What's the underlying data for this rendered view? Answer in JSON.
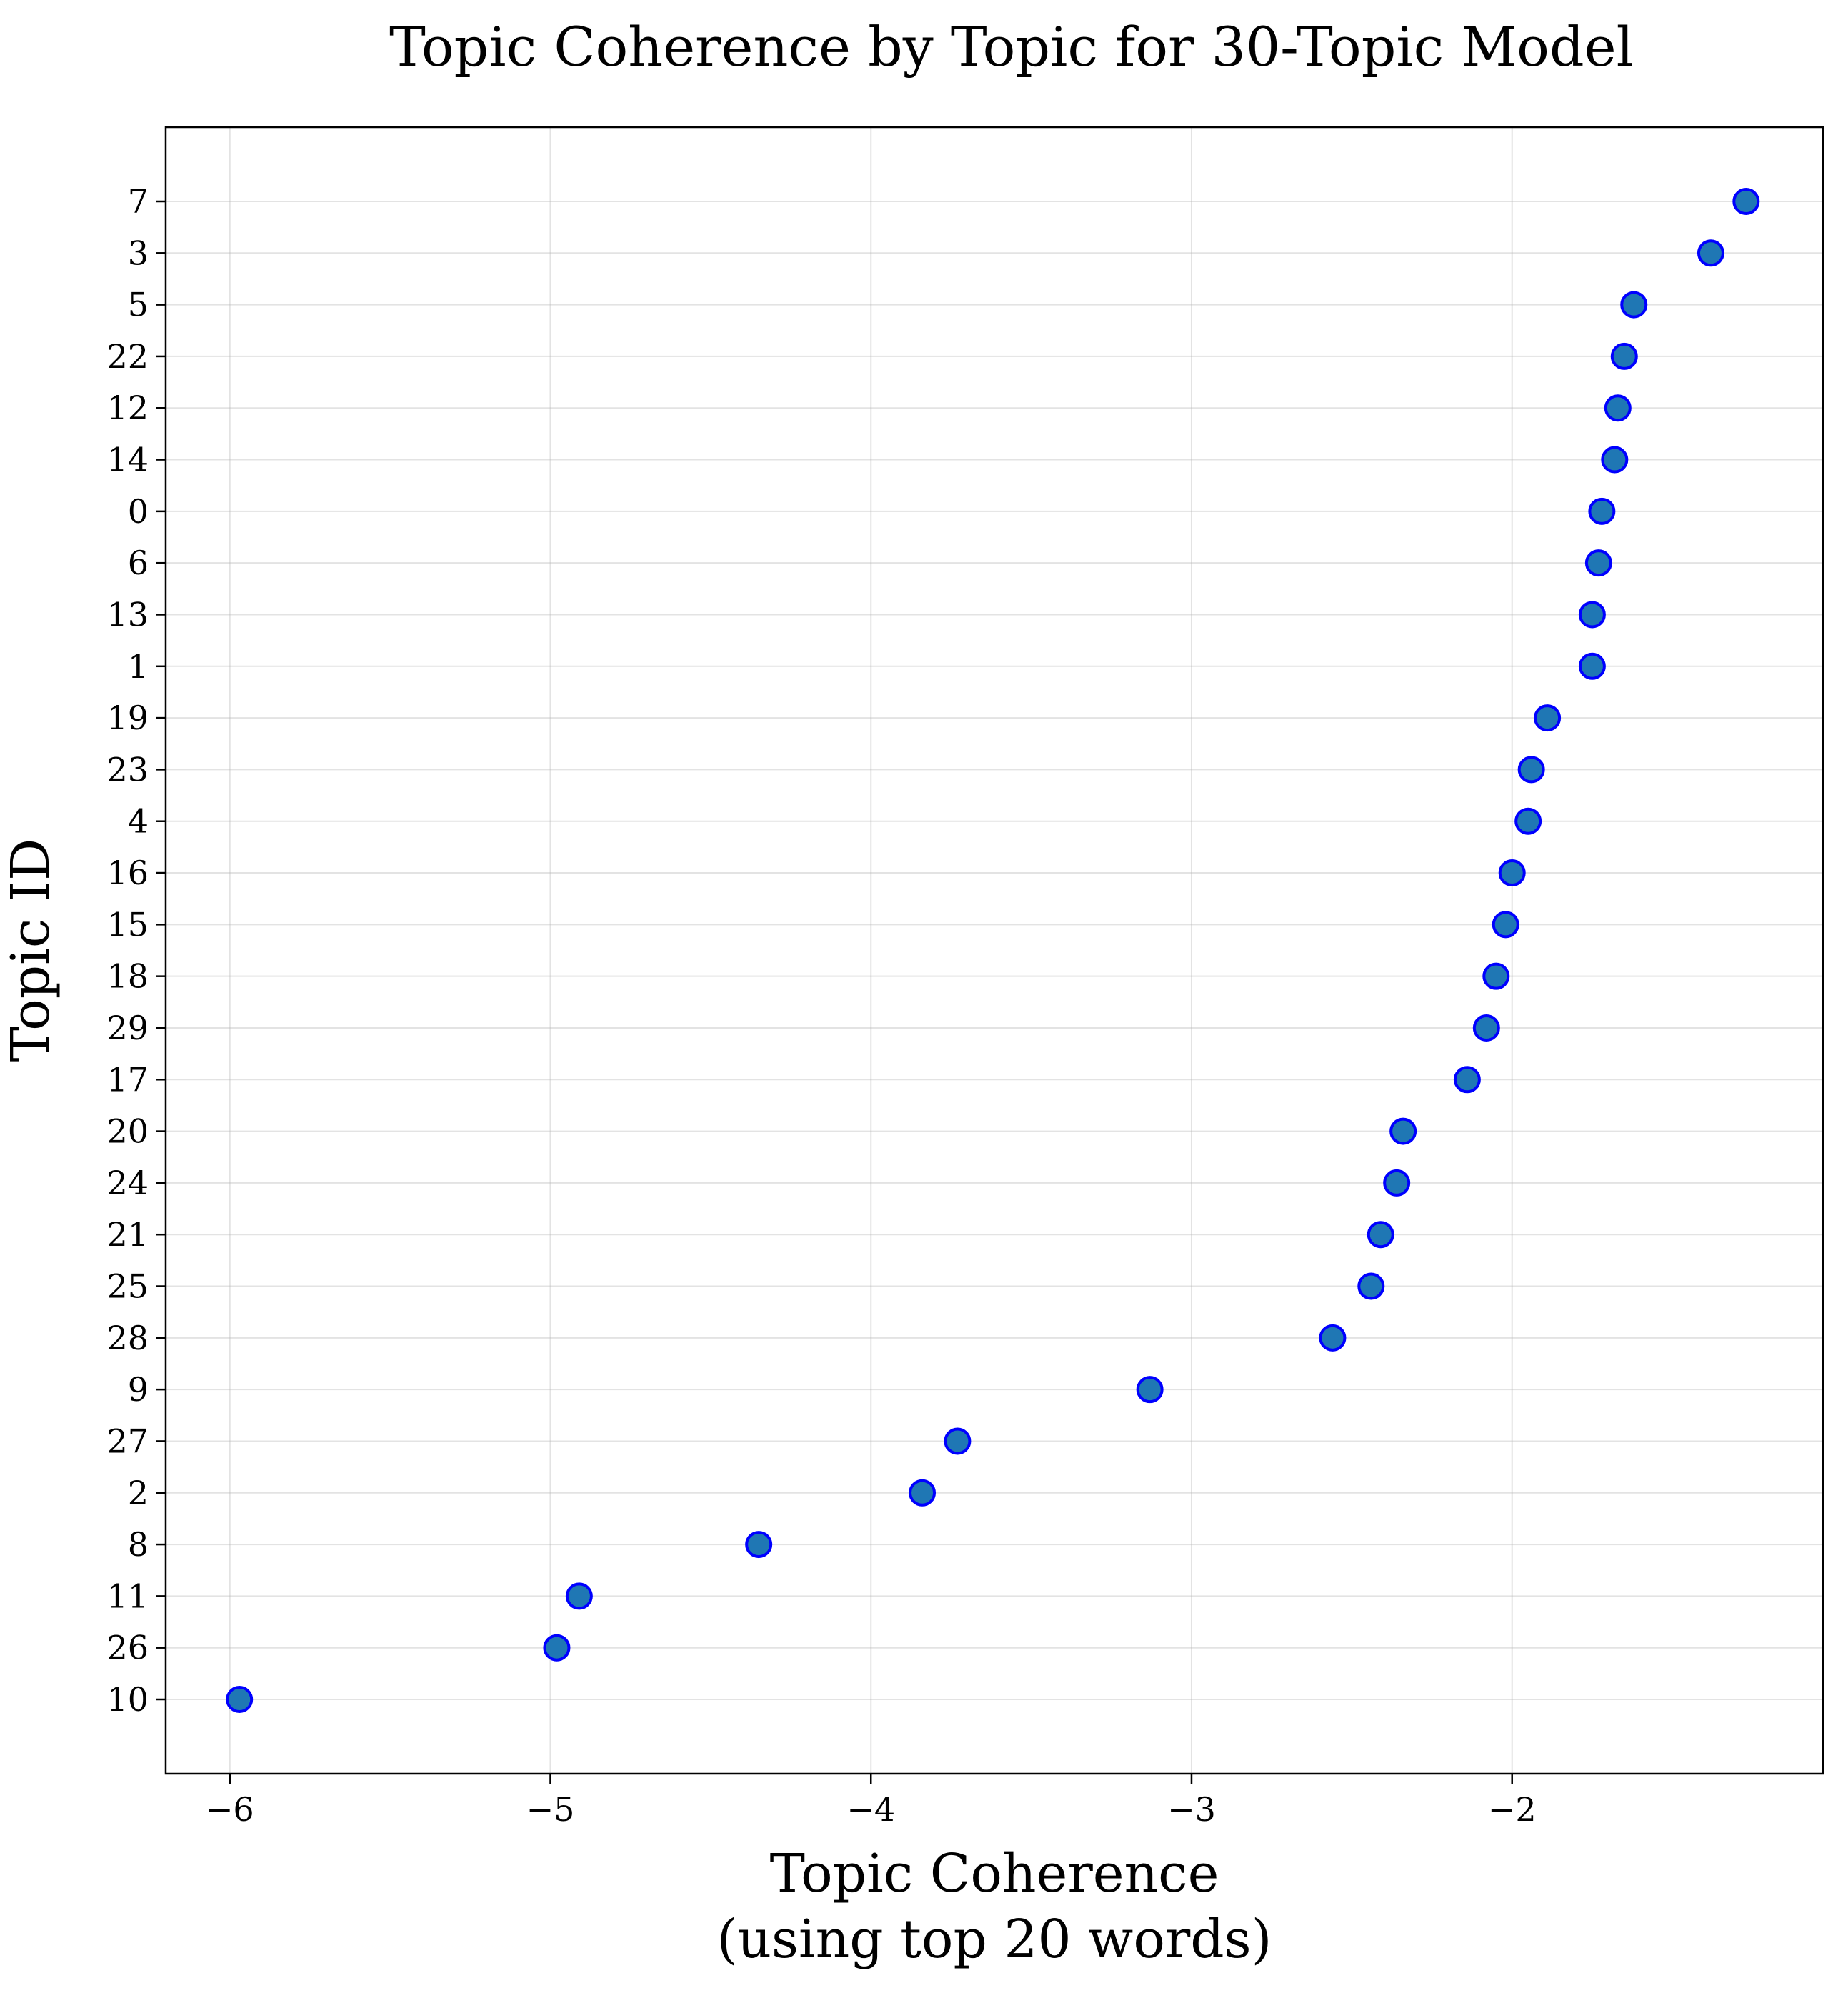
{
  "chart_data": {
    "type": "scatter",
    "title": "Topic Coherence by Topic for 30-Topic Model",
    "xlabel_lines": [
      "Topic Coherence",
      "(using top 20 words)"
    ],
    "ylabel": "Topic ID",
    "xlim": [
      -6.2,
      -1.03
    ],
    "x_ticks": [
      -6,
      -5,
      -4,
      -3,
      -2
    ],
    "x_tick_labels": [
      "−6",
      "−5",
      "−4",
      "−3",
      "−2"
    ],
    "grid": true,
    "marker_fill": "#1f77b4",
    "marker_edge": "#0000ff",
    "points": [
      {
        "topic": "7",
        "x": -1.27
      },
      {
        "topic": "3",
        "x": -1.38
      },
      {
        "topic": "5",
        "x": -1.62
      },
      {
        "topic": "22",
        "x": -1.65
      },
      {
        "topic": "12",
        "x": -1.67
      },
      {
        "topic": "14",
        "x": -1.68
      },
      {
        "topic": "0",
        "x": -1.72
      },
      {
        "topic": "6",
        "x": -1.73
      },
      {
        "topic": "13",
        "x": -1.75
      },
      {
        "topic": "1",
        "x": -1.75
      },
      {
        "topic": "19",
        "x": -1.89
      },
      {
        "topic": "23",
        "x": -1.94
      },
      {
        "topic": "4",
        "x": -1.95
      },
      {
        "topic": "16",
        "x": -2.0
      },
      {
        "topic": "15",
        "x": -2.02
      },
      {
        "topic": "18",
        "x": -2.05
      },
      {
        "topic": "29",
        "x": -2.08
      },
      {
        "topic": "17",
        "x": -2.14
      },
      {
        "topic": "20",
        "x": -2.34
      },
      {
        "topic": "24",
        "x": -2.36
      },
      {
        "topic": "21",
        "x": -2.41
      },
      {
        "topic": "25",
        "x": -2.44
      },
      {
        "topic": "28",
        "x": -2.56
      },
      {
        "topic": "9",
        "x": -3.13
      },
      {
        "topic": "27",
        "x": -3.73
      },
      {
        "topic": "2",
        "x": -3.84
      },
      {
        "topic": "8",
        "x": -4.35
      },
      {
        "topic": "11",
        "x": -4.91
      },
      {
        "topic": "26",
        "x": -4.98
      },
      {
        "topic": "10",
        "x": -5.97
      }
    ]
  }
}
